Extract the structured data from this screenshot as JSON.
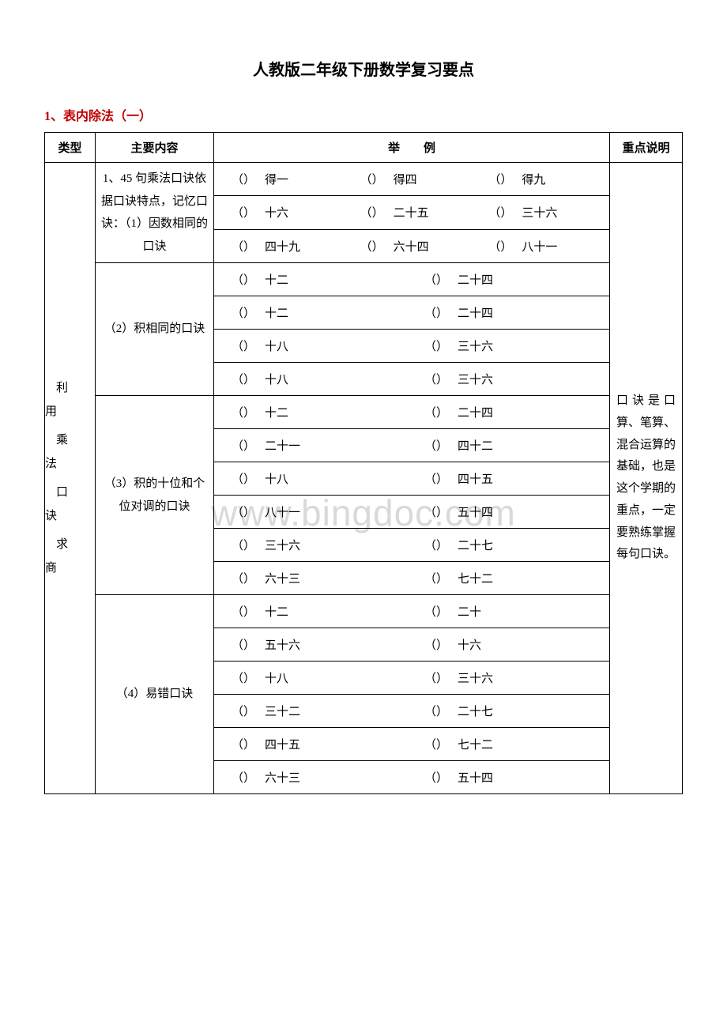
{
  "title": "人教版二年级下册数学复习要点",
  "section": {
    "num": "1",
    "sep": "、",
    "txt": "表内除法（一）"
  },
  "headers": {
    "type": "类型",
    "main": "主要内容",
    "example": "举　　例",
    "note": "重点说明"
  },
  "typeCell": [
    "利用",
    "乘法",
    "口诀",
    "求商"
  ],
  "note": "口诀是口算、笔算、混合运算的基础，也是这个学期的重点，一定要熟练掌握每句口诀。",
  "watermark": "www.bingdoc.com",
  "groups": [
    {
      "main": "1、45 句乘法口诀依据口诀特点，记忆口诀：（1）因数相同的口诀",
      "rows": [
        [
          "得一",
          "得四",
          "得九"
        ],
        [
          "十六",
          "二十五",
          "三十六"
        ],
        [
          "四十九",
          "六十四",
          "八十一"
        ]
      ],
      "cols": 3
    },
    {
      "main": "（2）积相同的口诀",
      "rows": [
        [
          "十二",
          "二十四"
        ],
        [
          "十二",
          "二十四"
        ],
        [
          "十八",
          "三十六"
        ],
        [
          "十八",
          "三十六"
        ]
      ],
      "cols": 2
    },
    {
      "main": "（3）积的十位和个位对调的口诀",
      "rows": [
        [
          "十二",
          "二十四"
        ],
        [
          "二十一",
          "四十二"
        ],
        [
          "十八",
          "四十五"
        ],
        [
          "八十一",
          "五十四"
        ],
        [
          "三十六",
          "二十七"
        ],
        [
          "六十三",
          "七十二"
        ]
      ],
      "cols": 2
    },
    {
      "main": "（4）易错口诀",
      "rows": [
        [
          "十二",
          "二十"
        ],
        [
          "五十六",
          "十六"
        ],
        [
          "十八",
          "三十六"
        ],
        [
          "三十二",
          "二十七"
        ],
        [
          "四十五",
          "七十二"
        ],
        [
          "六十三",
          "五十四"
        ]
      ],
      "cols": 2
    }
  ]
}
